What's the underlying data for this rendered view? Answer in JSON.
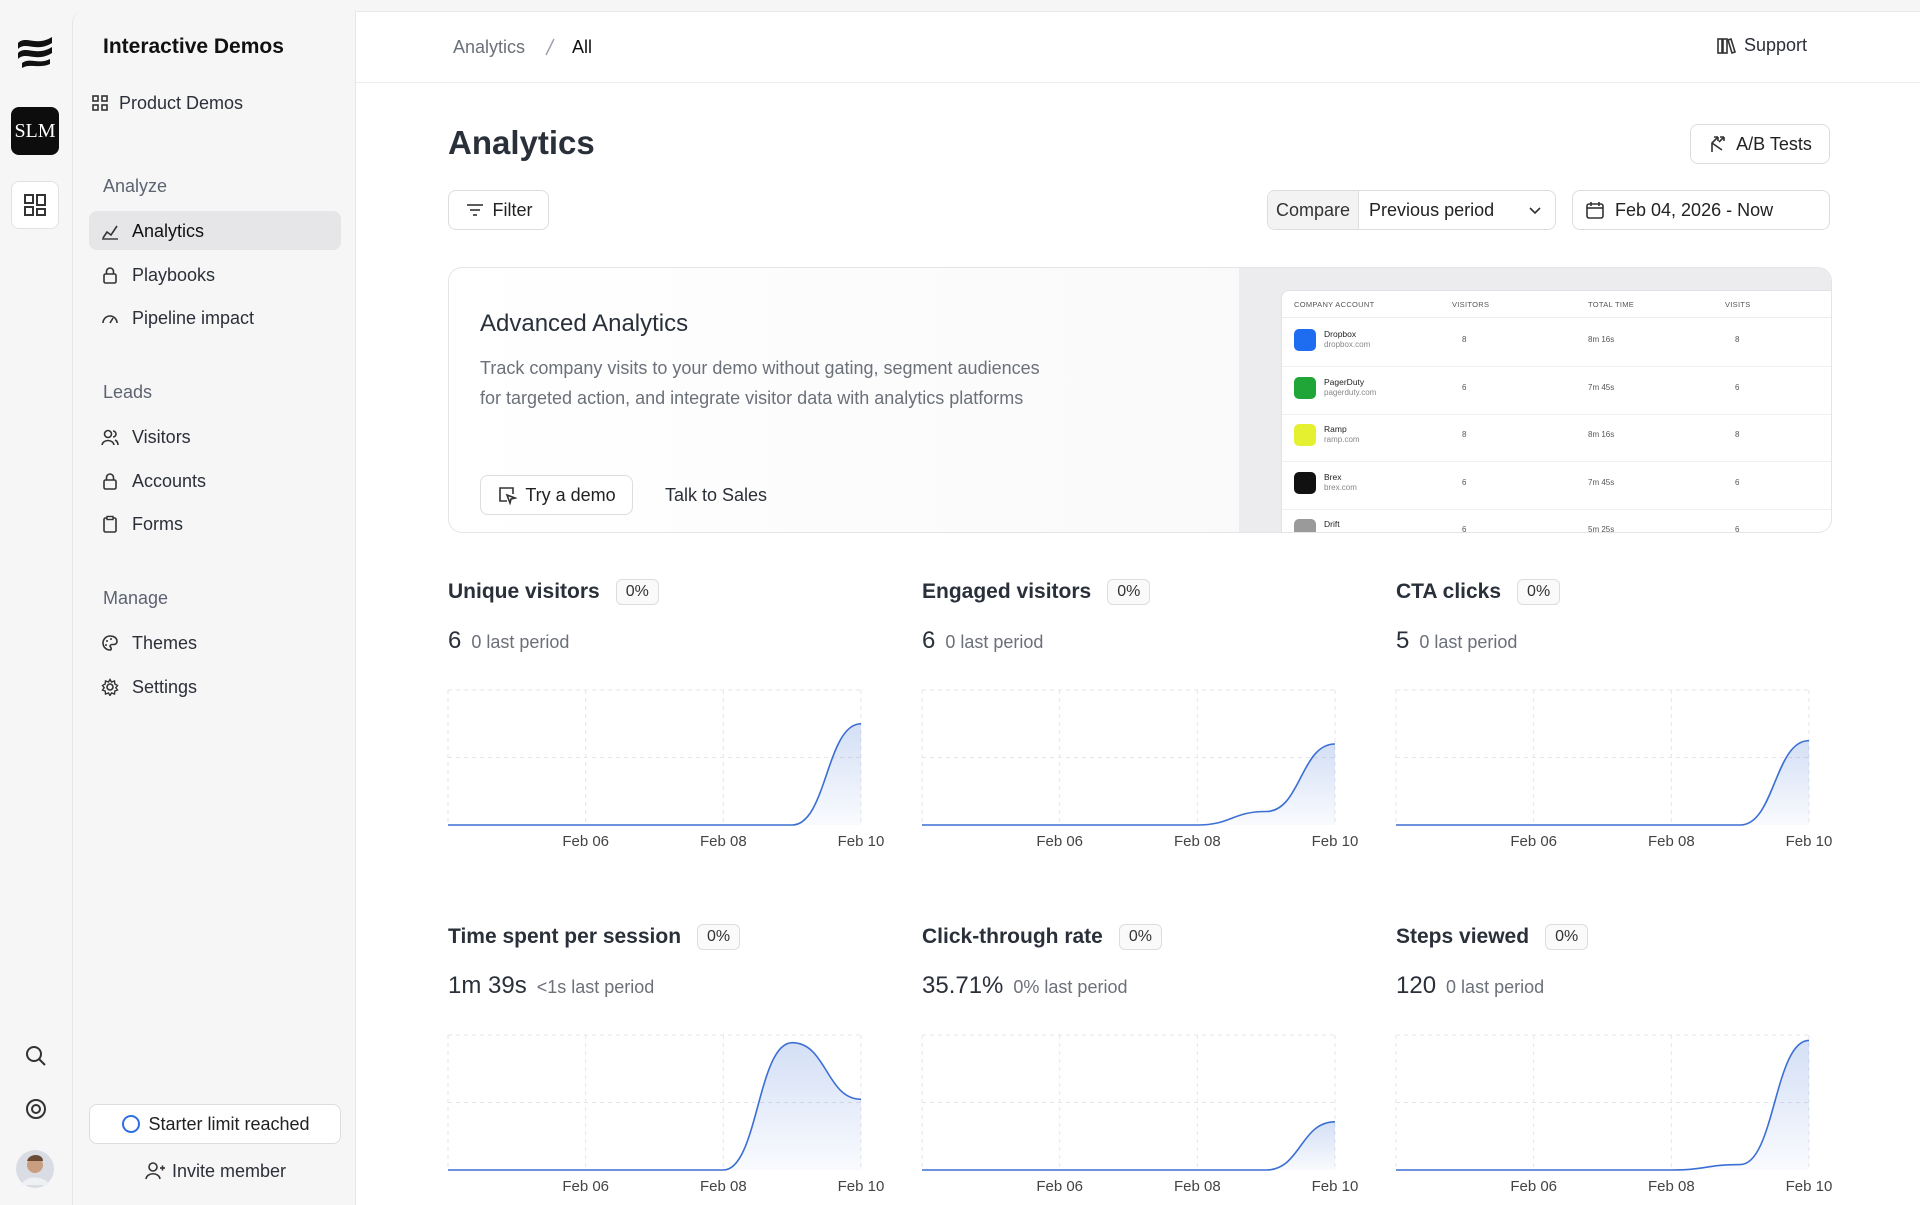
{
  "rail": {
    "workspace_badge": "SLM"
  },
  "sidebar": {
    "title": "Interactive Demos",
    "top_item": "Product Demos",
    "sections": [
      {
        "heading": "Analyze",
        "items": [
          "Analytics",
          "Playbooks",
          "Pipeline impact"
        ]
      },
      {
        "heading": "Leads",
        "items": [
          "Visitors",
          "Accounts",
          "Forms"
        ]
      },
      {
        "heading": "Manage",
        "items": [
          "Themes",
          "Settings"
        ]
      }
    ],
    "limit_button": "Starter limit reached",
    "invite_button": "Invite member"
  },
  "header": {
    "breadcrumb": [
      "Analytics",
      "All"
    ],
    "support": "Support"
  },
  "page": {
    "title": "Analytics",
    "ab_tests": "A/B Tests",
    "filter": "Filter",
    "compare_label": "Compare",
    "compare_value": "Previous period",
    "date_range": "Feb 04, 2026 - Now"
  },
  "banner": {
    "title": "Advanced Analytics",
    "description": [
      "Track company visits to your demo without gating, segment audiences",
      "for targeted action, and integrate visitor data with analytics platforms"
    ],
    "primary_button": "Try a demo",
    "secondary_button": "Talk to Sales",
    "preview": {
      "columns": [
        "COMPANY ACCOUNT",
        "VISITORS",
        "TOTAL TIME",
        "VISITS"
      ],
      "rows": [
        {
          "name": "Dropbox",
          "domain": "dropbox.com",
          "visitors": "8",
          "time": "8m 16s",
          "visits": "8",
          "color": "#1e6cf0"
        },
        {
          "name": "PagerDuty",
          "domain": "pagerduty.com",
          "visitors": "6",
          "time": "7m 45s",
          "visits": "6",
          "color": "#1fa637"
        },
        {
          "name": "Ramp",
          "domain": "ramp.com",
          "visitors": "8",
          "time": "8m 16s",
          "visits": "8",
          "color": "#e4f030"
        },
        {
          "name": "Brex",
          "domain": "brex.com",
          "visitors": "6",
          "time": "7m 45s",
          "visits": "6",
          "color": "#111111"
        },
        {
          "name": "Drift",
          "visitors": "6",
          "time": "5m 25s",
          "visits": "6",
          "color": "#9a9a9a"
        }
      ]
    }
  },
  "metrics": [
    {
      "title": "Unique visitors",
      "change": "0%",
      "value": "6",
      "previous": "0 last period",
      "chart": {
        "type": "line",
        "categories": [
          null,
          null,
          "Feb 06",
          null,
          "Feb 08",
          null,
          "Feb 10"
        ],
        "values": [
          0,
          0,
          0,
          0,
          0,
          0,
          6
        ],
        "ylim": [
          0,
          8
        ],
        "color": "#3b6fd4"
      }
    },
    {
      "title": "Engaged visitors",
      "change": "0%",
      "value": "6",
      "previous": "0 last period",
      "chart": {
        "type": "line",
        "categories": [
          null,
          null,
          "Feb 06",
          null,
          "Feb 08",
          null,
          "Feb 10"
        ],
        "values": [
          0,
          0,
          0,
          0,
          0,
          1,
          6
        ],
        "ylim": [
          0,
          10
        ],
        "color": "#3b6fd4"
      }
    },
    {
      "title": "CTA clicks",
      "change": "0%",
      "value": "5",
      "previous": "0 last period",
      "chart": {
        "type": "line",
        "categories": [
          null,
          null,
          "Feb 06",
          null,
          "Feb 08",
          null,
          "Feb 10"
        ],
        "values": [
          0,
          0,
          0,
          0,
          0,
          0,
          5
        ],
        "ylim": [
          0,
          8
        ],
        "color": "#3b6fd4"
      }
    },
    {
      "title": "Time spent per session",
      "change": "0%",
      "value": "1m 39s",
      "previous": "<1s last period",
      "chart": {
        "type": "line",
        "categories": [
          null,
          null,
          "Feb 06",
          null,
          "Feb 08",
          null,
          "Feb 10"
        ],
        "values": [
          0,
          0,
          0,
          0,
          0,
          99,
          55
        ],
        "ylim": [
          0,
          105
        ],
        "color": "#3b6fd4"
      }
    },
    {
      "title": "Click-through rate",
      "change": "0%",
      "value": "35.71%",
      "previous": "0% last period",
      "chart": {
        "type": "line",
        "categories": [
          null,
          null,
          "Feb 06",
          null,
          "Feb 08",
          null,
          "Feb 10"
        ],
        "values": [
          0,
          0,
          0,
          0,
          0,
          0,
          35.71
        ],
        "ylim": [
          0,
          100
        ],
        "color": "#3b6fd4"
      }
    },
    {
      "title": "Steps viewed",
      "change": "0%",
      "value": "120",
      "previous": "0 last period",
      "chart": {
        "type": "line",
        "categories": [
          null,
          null,
          "Feb 06",
          null,
          "Feb 08",
          null,
          "Feb 10"
        ],
        "values": [
          0,
          0,
          0,
          0,
          0,
          5,
          120
        ],
        "ylim": [
          0,
          125
        ],
        "color": "#3b6fd4"
      }
    }
  ]
}
